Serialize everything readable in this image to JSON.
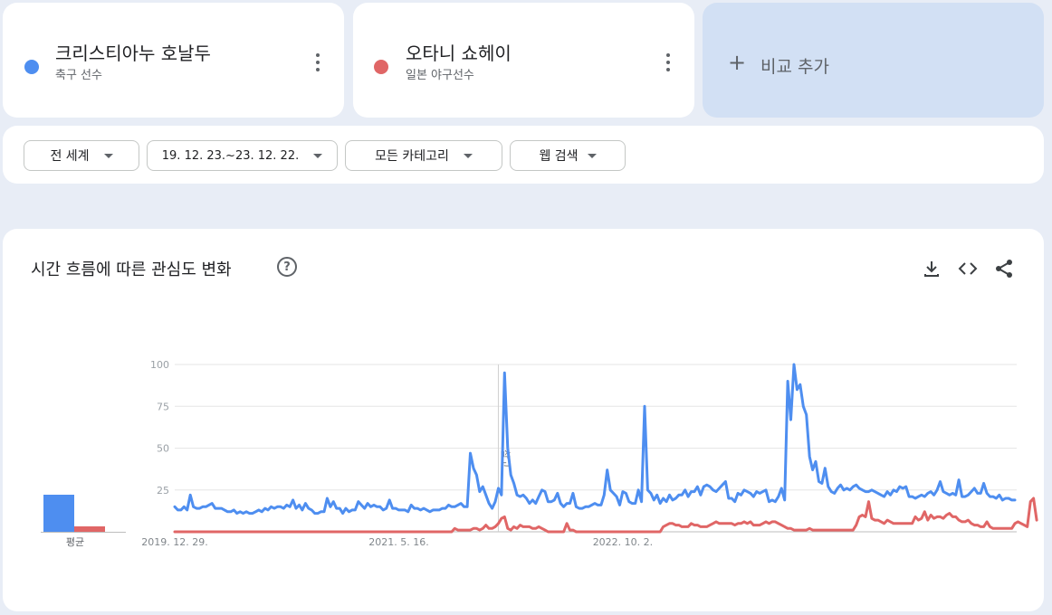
{
  "terms": [
    {
      "name": "크리스티아누 호날두",
      "subtitle": "축구 선수",
      "color": "#4e8ef0"
    },
    {
      "name": "오타니 쇼헤이",
      "subtitle": "일본 야구선수",
      "color": "#e06666"
    }
  ],
  "add_compare": {
    "plus": "+",
    "label": "비교 추가"
  },
  "filters": {
    "region": "전 세계",
    "time": "19. 12. 23.~23. 12. 22.",
    "category": "모든 카테고리",
    "search_type": "웹 검색"
  },
  "chart_panel": {
    "title": "시간 흐름에 따른 관심도 변화",
    "help": "?",
    "average_label": "평균",
    "averages": [
      22,
      3
    ],
    "note_label": "참고"
  },
  "chart_data": {
    "type": "line",
    "ylim": [
      0,
      100
    ],
    "y_ticks": [
      "100",
      "75",
      "50",
      "25"
    ],
    "x_tick_labels": [
      "2019. 12. 29.",
      "2021. 5. 16.",
      "2022. 10. 2."
    ],
    "x_tick_indices": [
      0,
      72,
      144
    ],
    "note_index": 104,
    "grid": true,
    "series": [
      {
        "name": "크리스티아누 호날두",
        "color": "#4e8ef0",
        "values": [
          15,
          13,
          13,
          15,
          13,
          22,
          15,
          14,
          14,
          15,
          15,
          16,
          17,
          14,
          14,
          14,
          13,
          12,
          12,
          13,
          11,
          12,
          11,
          12,
          11,
          11,
          12,
          13,
          12,
          14,
          13,
          15,
          14,
          15,
          15,
          14,
          16,
          15,
          19,
          14,
          16,
          13,
          17,
          14,
          13,
          11,
          11,
          12,
          12,
          20,
          15,
          18,
          14,
          14,
          11,
          14,
          12,
          13,
          13,
          18,
          16,
          14,
          17,
          15,
          16,
          15,
          15,
          13,
          14,
          19,
          14,
          14,
          13,
          13,
          13,
          12,
          16,
          14,
          14,
          13,
          14,
          13,
          12,
          13,
          13,
          13,
          14,
          14,
          16,
          15,
          15,
          16,
          17,
          15,
          15,
          47,
          38,
          34,
          24,
          27,
          22,
          17,
          14,
          18,
          26,
          22,
          95,
          50,
          34,
          29,
          22,
          21,
          22,
          20,
          17,
          19,
          17,
          21,
          25,
          24,
          18,
          18,
          19,
          23,
          17,
          15,
          17,
          17,
          23,
          15,
          14,
          14,
          15,
          15,
          16,
          17,
          16,
          16,
          22,
          37,
          25,
          23,
          21,
          16,
          24,
          23,
          18,
          17,
          17,
          25,
          18,
          75,
          25,
          23,
          19,
          22,
          17,
          20,
          18,
          22,
          19,
          20,
          22,
          22,
          25,
          21,
          24,
          24,
          27,
          22,
          27,
          28,
          27,
          25,
          24,
          26,
          28,
          30,
          20,
          20,
          18,
          23,
          22,
          25,
          24,
          23,
          21,
          24,
          23,
          24,
          25,
          18,
          19,
          18,
          21,
          26,
          19,
          90,
          67,
          100,
          85,
          88,
          75,
          70,
          45,
          37,
          42,
          30,
          29,
          38,
          27,
          24,
          23,
          26,
          28,
          25,
          26,
          25,
          27,
          28,
          26,
          25,
          24,
          24,
          25,
          24,
          23,
          22,
          21,
          24,
          22,
          25,
          24,
          27,
          26,
          27,
          21,
          21,
          20,
          21,
          22,
          21,
          23,
          24,
          22,
          25,
          30,
          24,
          23,
          22,
          23,
          22,
          31,
          21,
          21,
          22,
          24,
          26,
          23,
          23,
          29,
          23,
          21,
          21,
          20,
          22,
          19,
          20,
          20,
          19,
          19
        ]
      },
      {
        "name": "오타니 쇼헤이",
        "color": "#e06666",
        "values": [
          0,
          0,
          0,
          0,
          0,
          0,
          0,
          0,
          0,
          0,
          0,
          0,
          0,
          0,
          0,
          0,
          0,
          0,
          0,
          0,
          0,
          0,
          0,
          0,
          0,
          0,
          0,
          0,
          0,
          0,
          0,
          0,
          0,
          0,
          0,
          0,
          0,
          0,
          0,
          0,
          0,
          0,
          0,
          0,
          0,
          0,
          0,
          0,
          0,
          0,
          0,
          0,
          0,
          0,
          0,
          0,
          0,
          0,
          0,
          0,
          0,
          0,
          0,
          0,
          0,
          0,
          0,
          0,
          0,
          0,
          0,
          0,
          0,
          0,
          0,
          0,
          0,
          0,
          0,
          0,
          0,
          0,
          0,
          0,
          0,
          0,
          0,
          0,
          0,
          0,
          2,
          1,
          1,
          1,
          1,
          1,
          2,
          2,
          1,
          2,
          4,
          2,
          2,
          3,
          5,
          8,
          9,
          2,
          1,
          3,
          2,
          4,
          3,
          3,
          3,
          2,
          2,
          3,
          2,
          1,
          0,
          0,
          0,
          0,
          0,
          0,
          5,
          1,
          1,
          0,
          0,
          0,
          0,
          0,
          0,
          0,
          0,
          0,
          0,
          0,
          0,
          0,
          0,
          0,
          0,
          0,
          0,
          0,
          0,
          0,
          0,
          0,
          0,
          0,
          0,
          0,
          0,
          3,
          4,
          5,
          5,
          4,
          4,
          3,
          3,
          3,
          5,
          4,
          4,
          3,
          3,
          3,
          4,
          5,
          6,
          5,
          5,
          5,
          5,
          5,
          4,
          5,
          5,
          6,
          5,
          6,
          4,
          4,
          4,
          5,
          6,
          5,
          6,
          6,
          5,
          4,
          3,
          2,
          2,
          1,
          1,
          1,
          1,
          1,
          2,
          1,
          1,
          1,
          1,
          1,
          1,
          1,
          1,
          1,
          1,
          1,
          1,
          1,
          1,
          4,
          9,
          10,
          9,
          18,
          8,
          7,
          7,
          6,
          5,
          7,
          6,
          5,
          5,
          5,
          5,
          5,
          5,
          5,
          9,
          7,
          8,
          12,
          7,
          10,
          8,
          9,
          9,
          8,
          10,
          11,
          9,
          9,
          7,
          6,
          6,
          7,
          5,
          4,
          4,
          3,
          3,
          6,
          3,
          2,
          2,
          2,
          2,
          2,
          2,
          2,
          5,
          6,
          5,
          4,
          3,
          18,
          20,
          7
        ]
      }
    ]
  }
}
